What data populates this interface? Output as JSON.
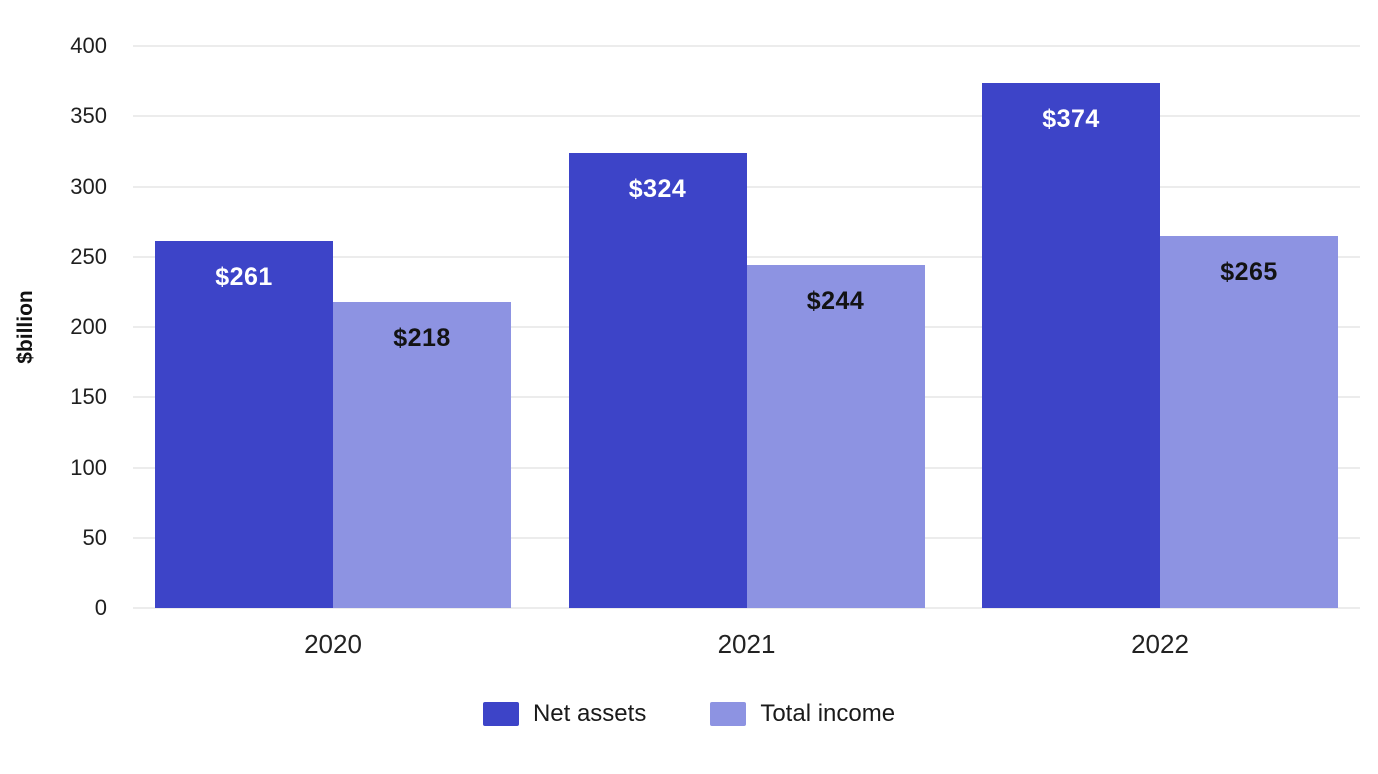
{
  "chart_data": {
    "type": "bar",
    "categories": [
      "2020",
      "2021",
      "2022"
    ],
    "series": [
      {
        "name": "Net assets",
        "values": [
          261,
          324,
          374
        ],
        "labels": [
          "$261",
          "$324",
          "$374"
        ],
        "color": "#3d44c8",
        "label_color": "#ffffff"
      },
      {
        "name": "Total income",
        "values": [
          218,
          244,
          265
        ],
        "labels": [
          "$218",
          "$244",
          "$265"
        ],
        "color": "#8d93e2",
        "label_color": "#131313"
      }
    ],
    "title": "",
    "xlabel": "",
    "ylabel": "$billion",
    "ylim": [
      0,
      400
    ],
    "yticks": [
      0,
      50,
      100,
      150,
      200,
      250,
      300,
      350,
      400
    ],
    "label_prefix": "$",
    "grid": true,
    "legend_position": "bottom",
    "gridline_color": "#d9d9d9",
    "background_color": "#ffffff"
  }
}
